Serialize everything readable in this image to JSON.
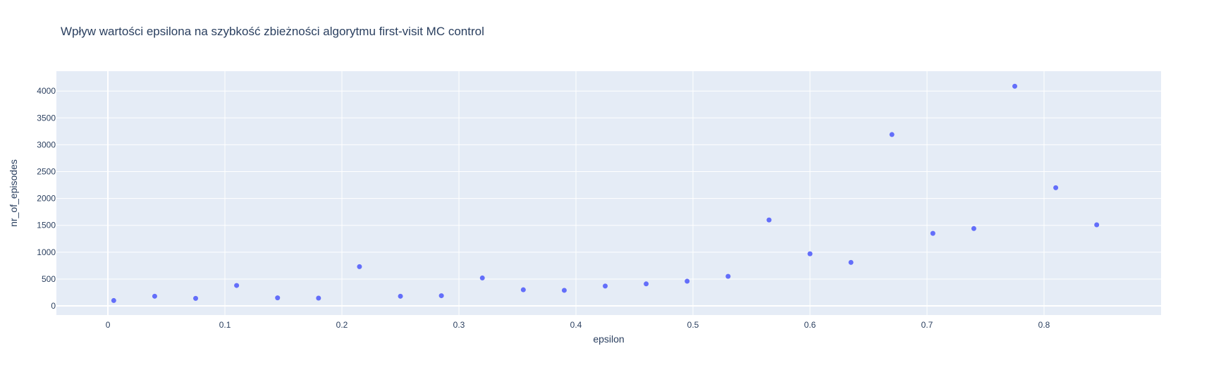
{
  "chart_data": {
    "type": "scatter",
    "title": "Wpływ wartości epsilona na szybkość zbieżności algorytmu first-visit MC control",
    "xlabel": "epsilon",
    "ylabel": "nr_of_episodes",
    "xlim": [
      -0.044,
      0.9
    ],
    "ylim": [
      -170,
      4370
    ],
    "xticks": [
      0,
      0.1,
      0.2,
      0.3,
      0.4,
      0.5,
      0.6,
      0.7,
      0.8
    ],
    "xtick_labels": [
      "0",
      "0.1",
      "0.2",
      "0.3",
      "0.4",
      "0.5",
      "0.6",
      "0.7",
      "0.8"
    ],
    "yticks": [
      0,
      500,
      1000,
      1500,
      2000,
      2500,
      3000,
      3500,
      4000
    ],
    "ytick_labels": [
      "0",
      "500",
      "1000",
      "1500",
      "2000",
      "2500",
      "3000",
      "3500",
      "4000"
    ],
    "grid": true,
    "colors": {
      "marker": "#636efa",
      "plot_bg": "#e5ecf6",
      "grid": "#ffffff",
      "text": "#2a3f5f"
    },
    "series": [
      {
        "x": [
          0.005,
          0.04,
          0.075,
          0.11,
          0.145,
          0.18,
          0.215,
          0.25,
          0.285,
          0.32,
          0.355,
          0.39,
          0.425,
          0.46,
          0.495,
          0.53,
          0.565,
          0.6,
          0.635,
          0.67,
          0.705,
          0.74,
          0.775,
          0.81,
          0.845
        ],
        "y": [
          100,
          180,
          140,
          380,
          150,
          145,
          730,
          180,
          190,
          520,
          300,
          290,
          370,
          410,
          460,
          550,
          1600,
          970,
          810,
          3190,
          1350,
          1440,
          4090,
          2200,
          1510
        ]
      }
    ]
  }
}
